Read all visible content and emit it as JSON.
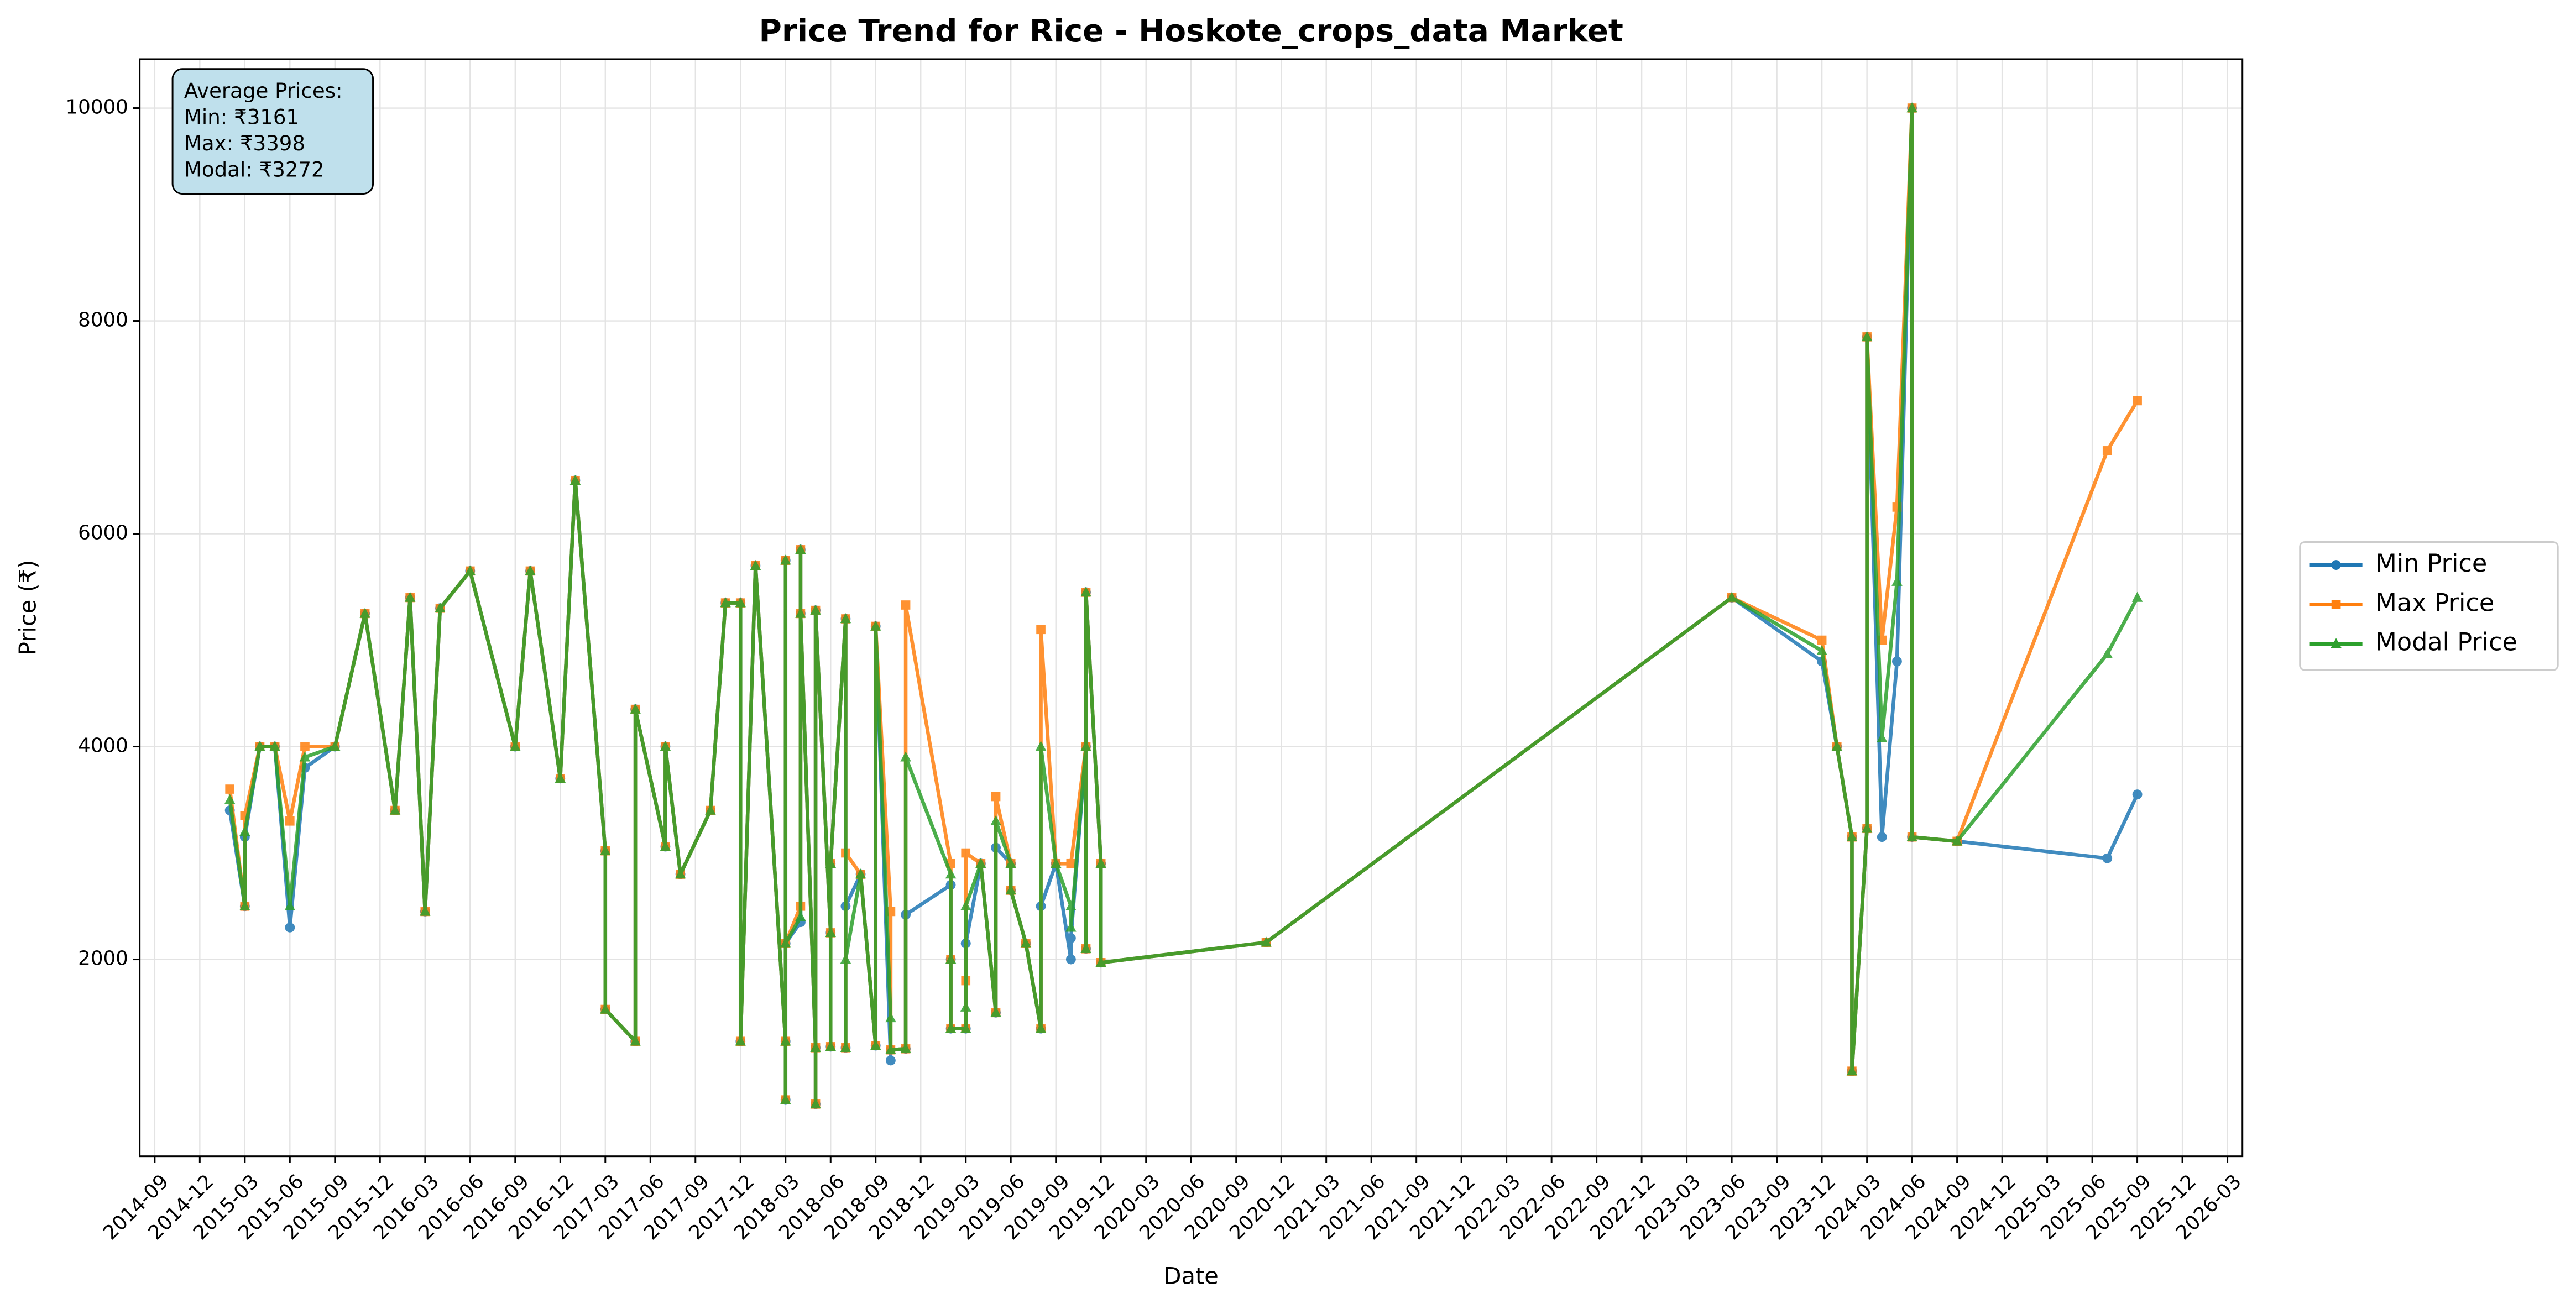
{
  "chart_data": {
    "type": "line",
    "title": "Price Trend for Rice - Hoskote_crops_data Market",
    "xlabel": "Date",
    "ylabel": "Price (₹)",
    "annotation": [
      "Average Prices:",
      "Min: ₹3161",
      "Max: ₹3398",
      "Modal: ₹3272"
    ],
    "x": [
      "2015-02",
      "2015-03",
      "2015-03",
      "2015-04",
      "2015-05",
      "2015-06",
      "2015-07",
      "2015-09",
      "2015-11",
      "2016-01",
      "2016-02",
      "2016-03",
      "2016-04",
      "2016-06",
      "2016-09",
      "2016-10",
      "2016-12",
      "2017-01",
      "2017-03",
      "2017-03",
      "2017-05",
      "2017-05",
      "2017-07",
      "2017-07",
      "2017-08",
      "2017-10",
      "2017-11",
      "2017-12",
      "2017-12",
      "2018-01",
      "2018-03",
      "2018-03",
      "2018-03",
      "2018-03",
      "2018-04",
      "2018-04",
      "2018-04",
      "2018-05",
      "2018-05",
      "2018-05",
      "2018-06",
      "2018-06",
      "2018-06",
      "2018-07",
      "2018-07",
      "2018-07",
      "2018-08",
      "2018-09",
      "2018-09",
      "2018-10",
      "2018-10",
      "2018-11",
      "2018-11",
      "2019-02",
      "2019-02",
      "2019-02",
      "2019-03",
      "2019-03",
      "2019-03",
      "2019-04",
      "2019-05",
      "2019-05",
      "2019-06",
      "2019-06",
      "2019-07",
      "2019-08",
      "2019-08",
      "2019-09",
      "2019-10",
      "2019-10",
      "2019-11",
      "2019-11",
      "2019-11",
      "2019-12",
      "2019-12",
      "2020-11",
      "2023-06",
      "2023-12",
      "2024-01",
      "2024-02",
      "2024-02",
      "2024-03",
      "2024-03",
      "2024-04",
      "2024-05",
      "2024-06",
      "2024-06",
      "2024-09",
      "2025-07",
      "2025-09"
    ],
    "series": [
      {
        "name": "Min Price",
        "color": "#1f77b4",
        "marker": "circle",
        "values": [
          3400,
          2500,
          3150,
          4000,
          4000,
          2300,
          3800,
          4000,
          5250,
          3400,
          5400,
          2450,
          5300,
          5650,
          4000,
          5650,
          3700,
          6500,
          3020,
          1530,
          1230,
          4350,
          3060,
          4000,
          2800,
          3400,
          5350,
          5350,
          1230,
          5700,
          1230,
          5750,
          680,
          2150,
          2350,
          5850,
          5250,
          1170,
          640,
          5280,
          2250,
          1180,
          2900,
          5200,
          1170,
          2500,
          2800,
          1190,
          5130,
          1050,
          1150,
          1160,
          2420,
          2700,
          2000,
          1350,
          1350,
          2150,
          2150,
          2900,
          1500,
          3050,
          2900,
          2650,
          2150,
          1350,
          2500,
          2900,
          2000,
          2200,
          4000,
          2100,
          5450,
          2900,
          1970,
          2160,
          5400,
          4800,
          4000,
          3150,
          950,
          3230,
          7850,
          3150,
          4800,
          10000,
          3150,
          3110,
          2950,
          3550
        ]
      },
      {
        "name": "Max Price",
        "color": "#ff7f0e",
        "marker": "square",
        "values": [
          3600,
          2500,
          3350,
          4000,
          4000,
          3300,
          4000,
          4000,
          5250,
          3400,
          5400,
          2450,
          5300,
          5650,
          4000,
          5650,
          3700,
          6500,
          3020,
          1530,
          1230,
          4350,
          3060,
          4000,
          2800,
          3400,
          5350,
          5350,
          1230,
          5700,
          1230,
          5750,
          680,
          2150,
          2500,
          5850,
          5250,
          1170,
          640,
          5280,
          2250,
          1180,
          2900,
          5200,
          1170,
          3000,
          2800,
          1190,
          5130,
          2450,
          1150,
          1160,
          5330,
          2900,
          2000,
          1350,
          1350,
          1800,
          3000,
          2900,
          1500,
          3530,
          2900,
          2650,
          2150,
          1350,
          5100,
          2900,
          2900,
          2900,
          4000,
          2100,
          5450,
          2900,
          1970,
          2160,
          5400,
          5000,
          4000,
          3150,
          950,
          3230,
          7850,
          5000,
          6250,
          10000,
          3150,
          3110,
          6780,
          7250
        ]
      },
      {
        "name": "Modal Price",
        "color": "#2ca02c",
        "marker": "triangle",
        "values": [
          3500,
          2500,
          3200,
          4000,
          4000,
          2500,
          3900,
          4000,
          5250,
          3400,
          5400,
          2450,
          5300,
          5650,
          4000,
          5650,
          3700,
          6500,
          3020,
          1530,
          1230,
          4350,
          3060,
          4000,
          2800,
          3400,
          5350,
          5350,
          1230,
          5700,
          1230,
          5750,
          680,
          2150,
          2400,
          5850,
          5250,
          1170,
          640,
          5280,
          2250,
          1180,
          2900,
          5200,
          1170,
          2000,
          2800,
          1190,
          5130,
          1450,
          1150,
          1160,
          3900,
          2800,
          2000,
          1350,
          1350,
          1550,
          2500,
          2900,
          1500,
          3300,
          2900,
          2650,
          2150,
          1350,
          4000,
          2900,
          2500,
          2300,
          4000,
          2100,
          5450,
          2900,
          1970,
          2160,
          5400,
          4900,
          4000,
          3150,
          950,
          3230,
          7850,
          4080,
          5550,
          10000,
          3150,
          3110,
          4870,
          5400
        ]
      }
    ],
    "xlim": [
      "2014-08",
      "2026-04"
    ],
    "xticks": [
      "2014-09",
      "2014-12",
      "2015-03",
      "2015-06",
      "2015-09",
      "2015-12",
      "2016-03",
      "2016-06",
      "2016-09",
      "2016-12",
      "2017-03",
      "2017-06",
      "2017-09",
      "2017-12",
      "2018-03",
      "2018-06",
      "2018-09",
      "2018-12",
      "2019-03",
      "2019-06",
      "2019-09",
      "2019-12",
      "2020-03",
      "2020-06",
      "2020-09",
      "2020-12",
      "2021-03",
      "2021-06",
      "2021-09",
      "2021-12",
      "2022-03",
      "2022-06",
      "2022-09",
      "2022-12",
      "2023-03",
      "2023-06",
      "2023-09",
      "2023-12",
      "2024-03",
      "2024-06",
      "2024-09",
      "2024-12",
      "2025-03",
      "2025-06",
      "2025-09",
      "2025-12",
      "2026-03"
    ],
    "ylim": [
      150,
      10460
    ],
    "yticks": [
      2000,
      4000,
      6000,
      8000,
      10000
    ],
    "grid": true,
    "legend": "outside right"
  }
}
